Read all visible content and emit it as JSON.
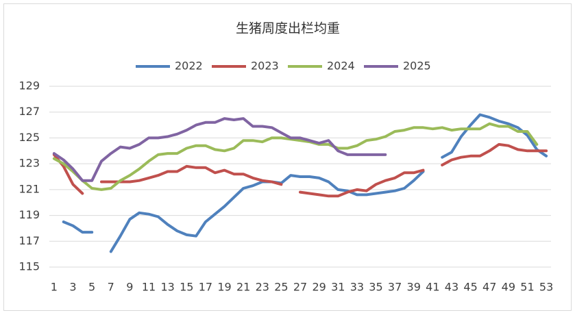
{
  "chart_data": {
    "type": "line",
    "title": "生猪周度出栏均重",
    "x": [
      1,
      2,
      3,
      4,
      5,
      6,
      7,
      8,
      9,
      10,
      11,
      12,
      13,
      14,
      15,
      16,
      17,
      18,
      19,
      20,
      21,
      22,
      23,
      24,
      25,
      26,
      27,
      28,
      29,
      30,
      31,
      32,
      33,
      34,
      35,
      36,
      37,
      38,
      39,
      40,
      41,
      42,
      43,
      44,
      45,
      46,
      47,
      48,
      49,
      50,
      51,
      52,
      53
    ],
    "xlim": [
      0.5,
      53.5
    ],
    "xticks": [
      1,
      3,
      5,
      7,
      9,
      11,
      13,
      15,
      17,
      19,
      21,
      23,
      25,
      27,
      29,
      31,
      33,
      35,
      37,
      39,
      41,
      43,
      45,
      47,
      49,
      51,
      53
    ],
    "ylim": [
      115,
      129
    ],
    "yticks": [
      115,
      117,
      119,
      121,
      123,
      125,
      127,
      129
    ],
    "grid": true,
    "legend": "top",
    "series": [
      {
        "name": "2022",
        "color": "#4f81bd",
        "values": [
          null,
          118.5,
          118.2,
          117.7,
          117.7,
          null,
          116.2,
          117.4,
          118.7,
          119.2,
          119.1,
          118.9,
          118.3,
          117.8,
          117.5,
          117.4,
          118.5,
          119.1,
          119.7,
          120.4,
          121.1,
          121.3,
          121.6,
          121.6,
          121.5,
          122.1,
          122.0,
          122.0,
          121.9,
          121.6,
          121.0,
          120.9,
          120.6,
          120.6,
          120.7,
          120.8,
          120.9,
          121.1,
          121.7,
          122.4,
          null,
          123.5,
          123.9,
          125.1,
          126.0,
          126.8,
          126.6,
          126.3,
          126.1,
          125.8,
          125.2,
          124.1,
          123.6
        ]
      },
      {
        "name": "2023",
        "color": "#c0504d",
        "values": [
          123.7,
          122.8,
          121.4,
          120.7,
          null,
          121.6,
          121.6,
          121.6,
          121.6,
          121.7,
          121.9,
          122.1,
          122.4,
          122.4,
          122.8,
          122.7,
          122.7,
          122.3,
          122.5,
          122.2,
          122.2,
          121.9,
          121.7,
          121.6,
          121.4,
          null,
          120.8,
          120.7,
          120.6,
          120.5,
          120.5,
          120.8,
          121.0,
          120.9,
          121.4,
          121.7,
          121.9,
          122.3,
          122.3,
          122.5,
          null,
          122.9,
          123.3,
          123.5,
          123.6,
          123.6,
          124.0,
          124.5,
          124.4,
          124.1,
          124.0,
          124.0,
          124.0
        ]
      },
      {
        "name": "2024",
        "color": "#9bbb59",
        "values": [
          123.4,
          123.0,
          122.4,
          121.7,
          121.1,
          121.0,
          121.1,
          121.7,
          122.1,
          122.6,
          123.2,
          123.7,
          123.8,
          123.8,
          124.2,
          124.4,
          124.4,
          124.1,
          124.0,
          124.2,
          124.8,
          124.8,
          124.7,
          125.0,
          125.0,
          124.9,
          124.8,
          124.7,
          124.5,
          124.5,
          124.2,
          124.2,
          124.4,
          124.8,
          124.9,
          125.1,
          125.5,
          125.6,
          125.8,
          125.8,
          125.7,
          125.8,
          125.6,
          125.7,
          125.7,
          125.7,
          126.1,
          125.9,
          125.9,
          125.5,
          125.5,
          124.5,
          null
        ]
      },
      {
        "name": "2025",
        "color": "#8064a2",
        "values": [
          123.8,
          123.3,
          122.6,
          121.7,
          121.7,
          123.2,
          123.8,
          124.3,
          124.2,
          124.5,
          125.0,
          125.0,
          125.1,
          125.3,
          125.6,
          126.0,
          126.2,
          126.2,
          126.5,
          126.4,
          126.5,
          125.9,
          125.9,
          125.8,
          125.4,
          125.0,
          125.0,
          124.8,
          124.6,
          124.8,
          124.0,
          123.7,
          123.7,
          123.7,
          123.7,
          123.7,
          null,
          null,
          null,
          null,
          null,
          null,
          null,
          null,
          null,
          null,
          null,
          null,
          null,
          null,
          null,
          null,
          null
        ]
      }
    ]
  }
}
